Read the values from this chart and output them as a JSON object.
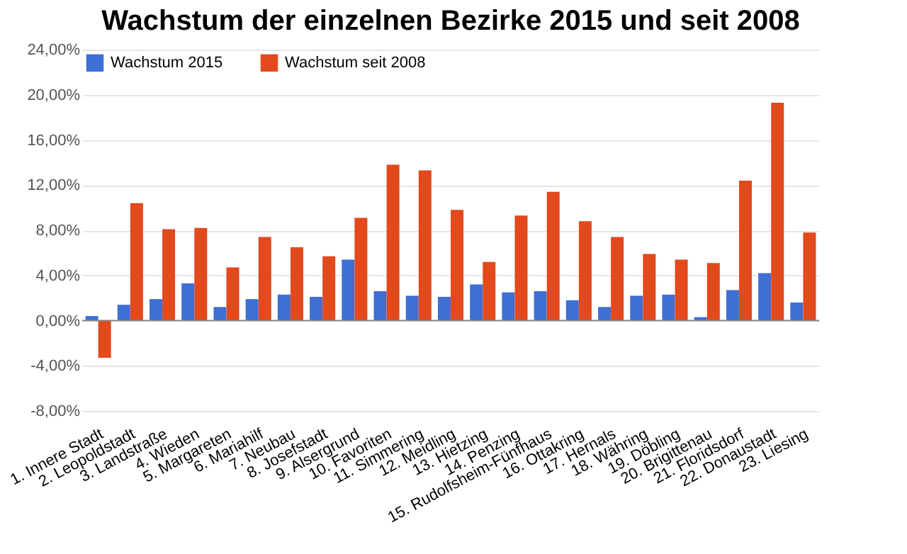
{
  "chart_data": {
    "type": "bar",
    "title": "Wachstum der einzelnen Bezirke 2015 und seit 2008",
    "categories": [
      "1. Innere Stadt",
      "2. Leopoldstadt",
      "3. Landstraße",
      "4. Wieden",
      "5. Margareten",
      "6. Mariahilf",
      "7. Neubau",
      "8. Josefstadt",
      "9. Alsergrund",
      "10. Favoriten",
      "11. Simmering",
      "12. Meidling",
      "13. Hietzing",
      "14. Penzing",
      "15. Rudolfsheim-Fünfhaus",
      "16. Ottakring",
      "17. Hernals",
      "18. Währing",
      "19. Döbling",
      "20. Brigittenau",
      "21. Floridsdorf",
      "22. Donaustadt",
      "23. Liesing"
    ],
    "series": [
      {
        "name": "Wachstum 2015",
        "color": "#3d6fd4",
        "values": [
          0.4,
          1.4,
          1.9,
          3.3,
          1.2,
          1.9,
          2.3,
          2.1,
          5.4,
          2.6,
          2.2,
          2.1,
          3.2,
          2.5,
          2.6,
          1.8,
          1.2,
          2.2,
          2.3,
          0.3,
          2.7,
          4.2,
          1.6
        ]
      },
      {
        "name": "Wachstum seit 2008",
        "color": "#e2491c",
        "values": [
          -3.3,
          10.4,
          8.1,
          8.2,
          4.7,
          7.4,
          6.5,
          5.7,
          9.1,
          13.8,
          13.3,
          9.8,
          5.2,
          9.3,
          11.4,
          8.8,
          7.4,
          5.9,
          5.4,
          5.1,
          12.4,
          19.3,
          7.8
        ]
      }
    ],
    "ylim": [
      -8,
      24
    ],
    "yticks": [
      {
        "value": -8,
        "label": "-8,00%"
      },
      {
        "value": -4,
        "label": "-4,00%"
      },
      {
        "value": 0,
        "label": "0,00%"
      },
      {
        "value": 4,
        "label": "4,00%"
      },
      {
        "value": 8,
        "label": "8,00%"
      },
      {
        "value": 12,
        "label": "12,00%"
      },
      {
        "value": 16,
        "label": "16,00%"
      },
      {
        "value": 20,
        "label": "20,00%"
      },
      {
        "value": 24,
        "label": "24,00%"
      }
    ],
    "grid": "y",
    "legend": "top left"
  }
}
